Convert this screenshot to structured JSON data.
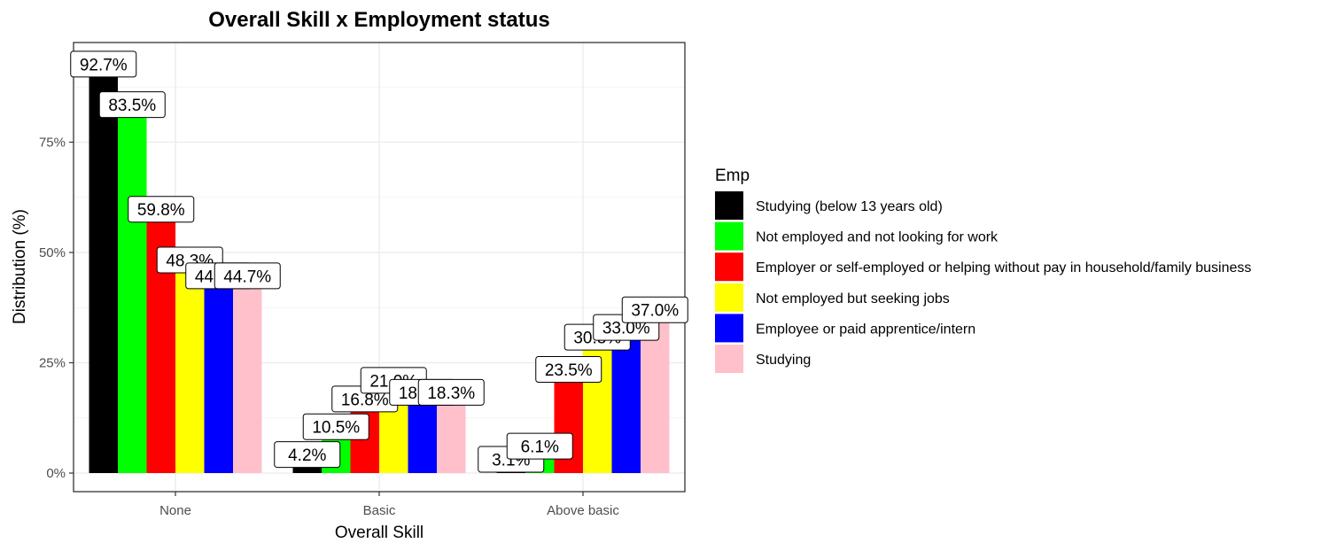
{
  "chart_data": {
    "type": "bar",
    "title": "Overall Skill x Employment status",
    "xlabel": "Overall Skill",
    "ylabel": "Distribution (%)",
    "categories": [
      "None",
      "Basic",
      "Above basic"
    ],
    "ylim": [
      0,
      100
    ],
    "yticks": [
      0,
      25,
      50,
      75
    ],
    "ytick_labels": [
      "0%",
      "25%",
      "50%",
      "75%"
    ],
    "grid": true,
    "legend_title": "Emp",
    "legend_position": "right",
    "series": [
      {
        "name": "Studying (below 13 years old)",
        "color": "#000000",
        "values": [
          92.7,
          4.2,
          3.1
        ],
        "labels": [
          "92.7%",
          "4.2%",
          "3.1%"
        ]
      },
      {
        "name": "Not employed and not looking for work",
        "color": "#00ff00",
        "values": [
          83.5,
          10.5,
          6.1
        ],
        "labels": [
          "83.5%",
          "10.5%",
          "6.1%"
        ]
      },
      {
        "name": "Employer or self-employed or helping without pay in household/family business",
        "color": "#ff0000",
        "values": [
          59.8,
          16.8,
          23.5
        ],
        "labels": [
          "59.8%",
          "16.8%",
          "23.5%"
        ]
      },
      {
        "name": "Not employed but seeking jobs",
        "color": "#ffff00",
        "values": [
          48.3,
          21.0,
          30.8
        ],
        "labels": [
          "48.3%",
          "21.0%",
          "30.8%"
        ]
      },
      {
        "name": "Employee or paid apprentice/intern",
        "color": "#0000ff",
        "values": [
          44.7,
          18.3,
          33.0
        ],
        "labels": [
          "44.7%",
          "18.3%",
          "33.0%"
        ]
      },
      {
        "name": "Studying",
        "color": "#ffc0cb",
        "values": [
          44.7,
          18.3,
          37.0
        ],
        "labels": [
          "44.7%",
          "18.3%",
          "37.0%"
        ]
      }
    ]
  }
}
